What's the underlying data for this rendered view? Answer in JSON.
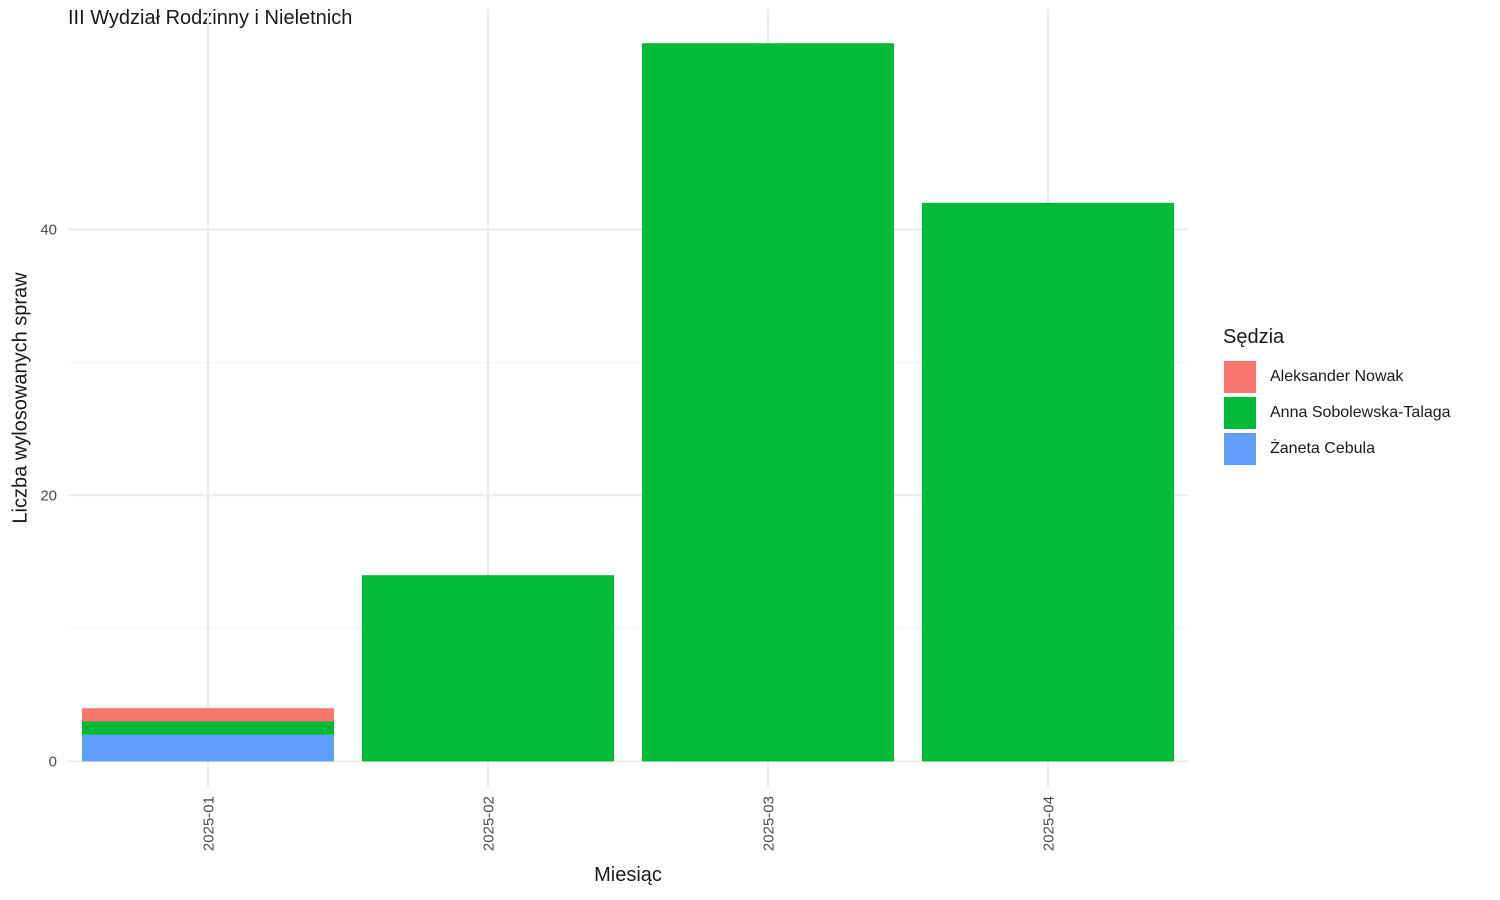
{
  "chart_data": {
    "type": "bar",
    "stacked": true,
    "title": "III Wydział Rodzinny i Nieletnich",
    "xlabel": "Miesiąc",
    "ylabel": "Liczba wylosowanych spraw",
    "categories": [
      "2025-01",
      "2025-02",
      "2025-03",
      "2025-04"
    ],
    "series": [
      {
        "name": "Żaneta Cebula",
        "color": "#619CFF",
        "values": [
          2,
          0,
          0,
          0
        ]
      },
      {
        "name": "Anna Sobolewska-Talaga",
        "color": "#00BA38",
        "values": [
          1,
          14,
          54,
          42
        ]
      },
      {
        "name": "Aleksander Nowak",
        "color": "#F8766D",
        "values": [
          1,
          0,
          0,
          0
        ]
      }
    ],
    "ylim": [
      -2,
      56.5
    ],
    "yticks": [
      0,
      20,
      40
    ],
    "grid": true,
    "x_tick_rotation": -90,
    "legend": {
      "title": "Sędzia",
      "position": "right",
      "items": [
        {
          "label": "Aleksander Nowak",
          "color": "#F8766D"
        },
        {
          "label": "Anna Sobolewska-Talaga",
          "color": "#00BA38"
        },
        {
          "label": "Żaneta Cebula",
          "color": "#619CFF"
        }
      ]
    }
  }
}
